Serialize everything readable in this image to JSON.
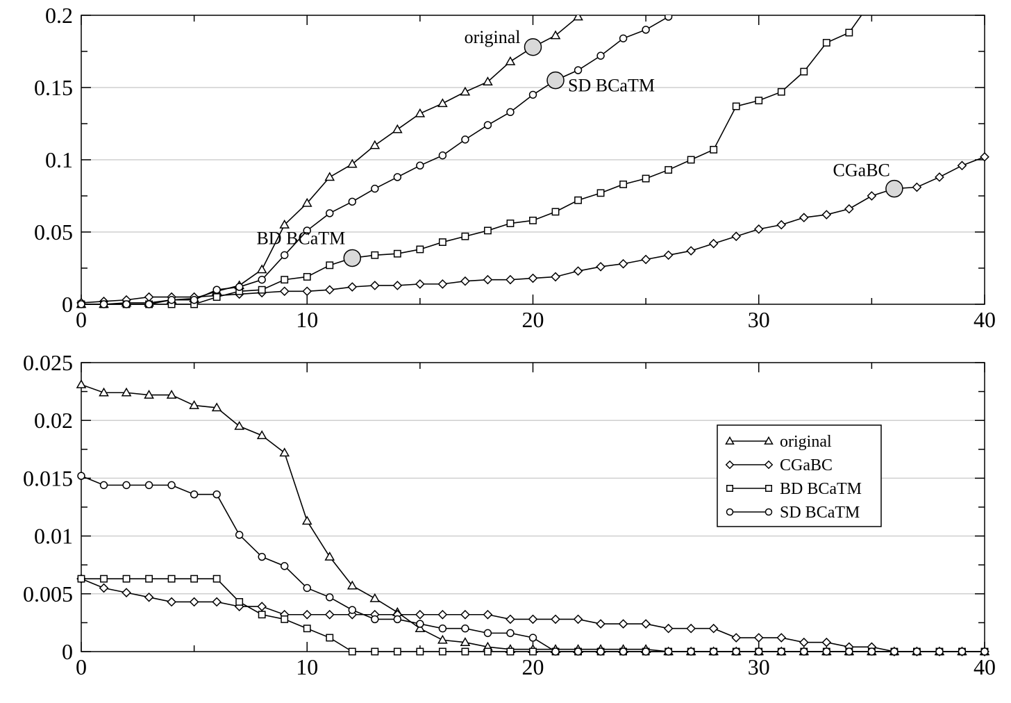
{
  "chart_data": [
    {
      "type": "line",
      "xlim": [
        0,
        40
      ],
      "ylim": [
        0,
        0.2
      ],
      "x_ticks": [
        0,
        10,
        20,
        30,
        40
      ],
      "y_ticks": [
        0,
        0.05,
        0.1,
        0.15,
        0.2
      ],
      "x_tick_labels": [
        "0",
        "10",
        "20",
        "30",
        "40"
      ],
      "y_tick_labels": [
        "0",
        "0.05",
        "0.1",
        "0.15",
        "0.2"
      ],
      "grid": "horizontal",
      "series": [
        {
          "name": "original",
          "marker": "triangle",
          "x": [
            0,
            1,
            2,
            3,
            4,
            5,
            6,
            7,
            8,
            9,
            10,
            11,
            12,
            13,
            14,
            15,
            16,
            17,
            18,
            19,
            20,
            21,
            22,
            23
          ],
          "values": [
            0.0,
            0.0,
            0.001,
            0.001,
            0.003,
            0.004,
            0.009,
            0.013,
            0.024,
            0.055,
            0.07,
            0.088,
            0.097,
            0.11,
            0.121,
            0.132,
            0.139,
            0.147,
            0.154,
            0.168,
            0.178,
            0.186,
            0.199,
            0.21
          ]
        },
        {
          "name": "CGaBC",
          "marker": "diamond",
          "x": [
            0,
            1,
            2,
            3,
            4,
            5,
            6,
            7,
            8,
            9,
            10,
            11,
            12,
            13,
            14,
            15,
            16,
            17,
            18,
            19,
            20,
            21,
            22,
            23,
            24,
            25,
            26,
            27,
            28,
            29,
            30,
            31,
            32,
            33,
            34,
            35,
            36,
            37,
            38,
            39,
            40
          ],
          "values": [
            0.001,
            0.002,
            0.003,
            0.005,
            0.005,
            0.005,
            0.006,
            0.007,
            0.008,
            0.009,
            0.009,
            0.01,
            0.012,
            0.013,
            0.013,
            0.014,
            0.014,
            0.016,
            0.017,
            0.017,
            0.018,
            0.019,
            0.023,
            0.026,
            0.028,
            0.031,
            0.034,
            0.037,
            0.042,
            0.047,
            0.052,
            0.055,
            0.06,
            0.062,
            0.066,
            0.075,
            0.08,
            0.081,
            0.088,
            0.096,
            0.102
          ]
        },
        {
          "name": "BD BCaTM",
          "marker": "square",
          "x": [
            0,
            1,
            2,
            3,
            4,
            5,
            6,
            7,
            8,
            9,
            10,
            11,
            12,
            13,
            14,
            15,
            16,
            17,
            18,
            19,
            20,
            21,
            22,
            23,
            24,
            25,
            26,
            27,
            28,
            29,
            30,
            31,
            32,
            33,
            34,
            35
          ],
          "values": [
            0.0,
            0.0,
            0.0,
            0.0,
            0.0,
            0.0,
            0.005,
            0.009,
            0.01,
            0.017,
            0.019,
            0.027,
            0.032,
            0.034,
            0.035,
            0.038,
            0.043,
            0.047,
            0.051,
            0.056,
            0.058,
            0.064,
            0.072,
            0.077,
            0.083,
            0.087,
            0.093,
            0.1,
            0.107,
            0.137,
            0.141,
            0.147,
            0.161,
            0.181,
            0.188,
            0.21
          ]
        },
        {
          "name": "SD BCaTM",
          "marker": "circle",
          "x": [
            0,
            1,
            2,
            3,
            4,
            5,
            6,
            7,
            8,
            9,
            10,
            11,
            12,
            13,
            14,
            15,
            16,
            17,
            18,
            19,
            20,
            21,
            22,
            23,
            24,
            25,
            26,
            27
          ],
          "values": [
            0.0,
            0.0,
            0.0,
            0.0,
            0.003,
            0.003,
            0.01,
            0.012,
            0.017,
            0.034,
            0.051,
            0.063,
            0.071,
            0.08,
            0.088,
            0.096,
            0.103,
            0.114,
            0.124,
            0.133,
            0.145,
            0.155,
            0.162,
            0.172,
            0.184,
            0.19,
            0.199,
            0.21
          ]
        }
      ],
      "annotations": [
        {
          "text": "original",
          "x": 20,
          "y": 0.178
        },
        {
          "text": "SD BCaTM",
          "x": 21,
          "y": 0.155
        },
        {
          "text": "BD BCaTM",
          "x": 12,
          "y": 0.032
        },
        {
          "text": "CGaBC",
          "x": 36,
          "y": 0.08
        }
      ]
    },
    {
      "type": "line",
      "xlim": [
        0,
        40
      ],
      "ylim": [
        0,
        0.025
      ],
      "x_ticks": [
        0,
        10,
        20,
        30,
        40
      ],
      "y_ticks": [
        0,
        0.005,
        0.01,
        0.015,
        0.02,
        0.025
      ],
      "x_tick_labels": [
        "0",
        "10",
        "20",
        "30",
        "40"
      ],
      "y_tick_labels": [
        "0",
        "0.005",
        "0.01",
        "0.015",
        "0.02",
        "0.025"
      ],
      "grid": "horizontal",
      "legend_position": "top-right",
      "series": [
        {
          "name": "original",
          "marker": "triangle",
          "x": [
            0,
            1,
            2,
            3,
            4,
            5,
            6,
            7,
            8,
            9,
            10,
            11,
            12,
            13,
            14,
            15,
            16,
            17,
            18,
            19,
            20,
            21,
            22,
            23,
            24,
            25,
            26,
            27,
            28,
            29,
            30,
            31,
            32,
            33,
            34,
            35,
            36,
            37,
            38,
            39,
            40
          ],
          "values": [
            0.0231,
            0.0224,
            0.0224,
            0.0222,
            0.0222,
            0.0213,
            0.0211,
            0.0195,
            0.0187,
            0.0172,
            0.0113,
            0.0082,
            0.0057,
            0.0046,
            0.0034,
            0.002,
            0.001,
            0.0008,
            0.0004,
            0.0002,
            0.0002,
            0.0002,
            0.0002,
            0.0002,
            0.0002,
            0.0002,
            0.0,
            0.0,
            0.0,
            0.0,
            0.0,
            0.0,
            0.0,
            0.0,
            0.0,
            0.0,
            0.0,
            0.0,
            0.0,
            0.0,
            0.0
          ]
        },
        {
          "name": "CGaBC",
          "marker": "diamond",
          "x": [
            0,
            1,
            2,
            3,
            4,
            5,
            6,
            7,
            8,
            9,
            10,
            11,
            12,
            13,
            14,
            15,
            16,
            17,
            18,
            19,
            20,
            21,
            22,
            23,
            24,
            25,
            26,
            27,
            28,
            29,
            30,
            31,
            32,
            33,
            34,
            35,
            36,
            37,
            38,
            39,
            40
          ],
          "values": [
            0.0063,
            0.0055,
            0.0051,
            0.0047,
            0.0043,
            0.0043,
            0.0043,
            0.0039,
            0.0039,
            0.0032,
            0.0032,
            0.0032,
            0.0032,
            0.0032,
            0.0032,
            0.0032,
            0.0032,
            0.0032,
            0.0032,
            0.0028,
            0.0028,
            0.0028,
            0.0028,
            0.0024,
            0.0024,
            0.0024,
            0.002,
            0.002,
            0.002,
            0.0012,
            0.0012,
            0.0012,
            0.0008,
            0.0008,
            0.0004,
            0.0004,
            0.0,
            0.0,
            0.0,
            0.0,
            0.0
          ]
        },
        {
          "name": "BD BCaTM",
          "marker": "square",
          "x": [
            0,
            1,
            2,
            3,
            4,
            5,
            6,
            7,
            8,
            9,
            10,
            11,
            12,
            13,
            14,
            15,
            16,
            17,
            18,
            19,
            20,
            21,
            22,
            23,
            24,
            25,
            26,
            27,
            28,
            29,
            30,
            31,
            32,
            33,
            34,
            35,
            36,
            37,
            38,
            39,
            40
          ],
          "values": [
            0.0063,
            0.0063,
            0.0063,
            0.0063,
            0.0063,
            0.0063,
            0.0063,
            0.0043,
            0.0032,
            0.0028,
            0.002,
            0.0012,
            0.0,
            0.0,
            0.0,
            0.0,
            0.0,
            0.0,
            0.0,
            0.0,
            0.0,
            0.0,
            0.0,
            0.0,
            0.0,
            0.0,
            0.0,
            0.0,
            0.0,
            0.0,
            0.0,
            0.0,
            0.0,
            0.0,
            0.0,
            0.0,
            0.0,
            0.0,
            0.0,
            0.0,
            0.0
          ]
        },
        {
          "name": "SD BCaTM",
          "marker": "circle",
          "x": [
            0,
            1,
            2,
            3,
            4,
            5,
            6,
            7,
            8,
            9,
            10,
            11,
            12,
            13,
            14,
            15,
            16,
            17,
            18,
            19,
            20,
            21,
            22,
            23,
            24,
            25,
            26,
            27,
            28,
            29,
            30,
            31,
            32,
            33,
            34,
            35,
            36,
            37,
            38,
            39,
            40
          ],
          "values": [
            0.0152,
            0.0144,
            0.0144,
            0.0144,
            0.0144,
            0.0136,
            0.0136,
            0.0101,
            0.0082,
            0.0074,
            0.0055,
            0.0047,
            0.0036,
            0.0028,
            0.0028,
            0.0024,
            0.002,
            0.002,
            0.0016,
            0.0016,
            0.0012,
            0.0,
            0.0,
            0.0,
            0.0,
            0.0,
            0.0,
            0.0,
            0.0,
            0.0,
            0.0,
            0.0,
            0.0,
            0.0,
            0.0,
            0.0,
            0.0,
            0.0,
            0.0,
            0.0,
            0.0
          ]
        }
      ]
    }
  ]
}
